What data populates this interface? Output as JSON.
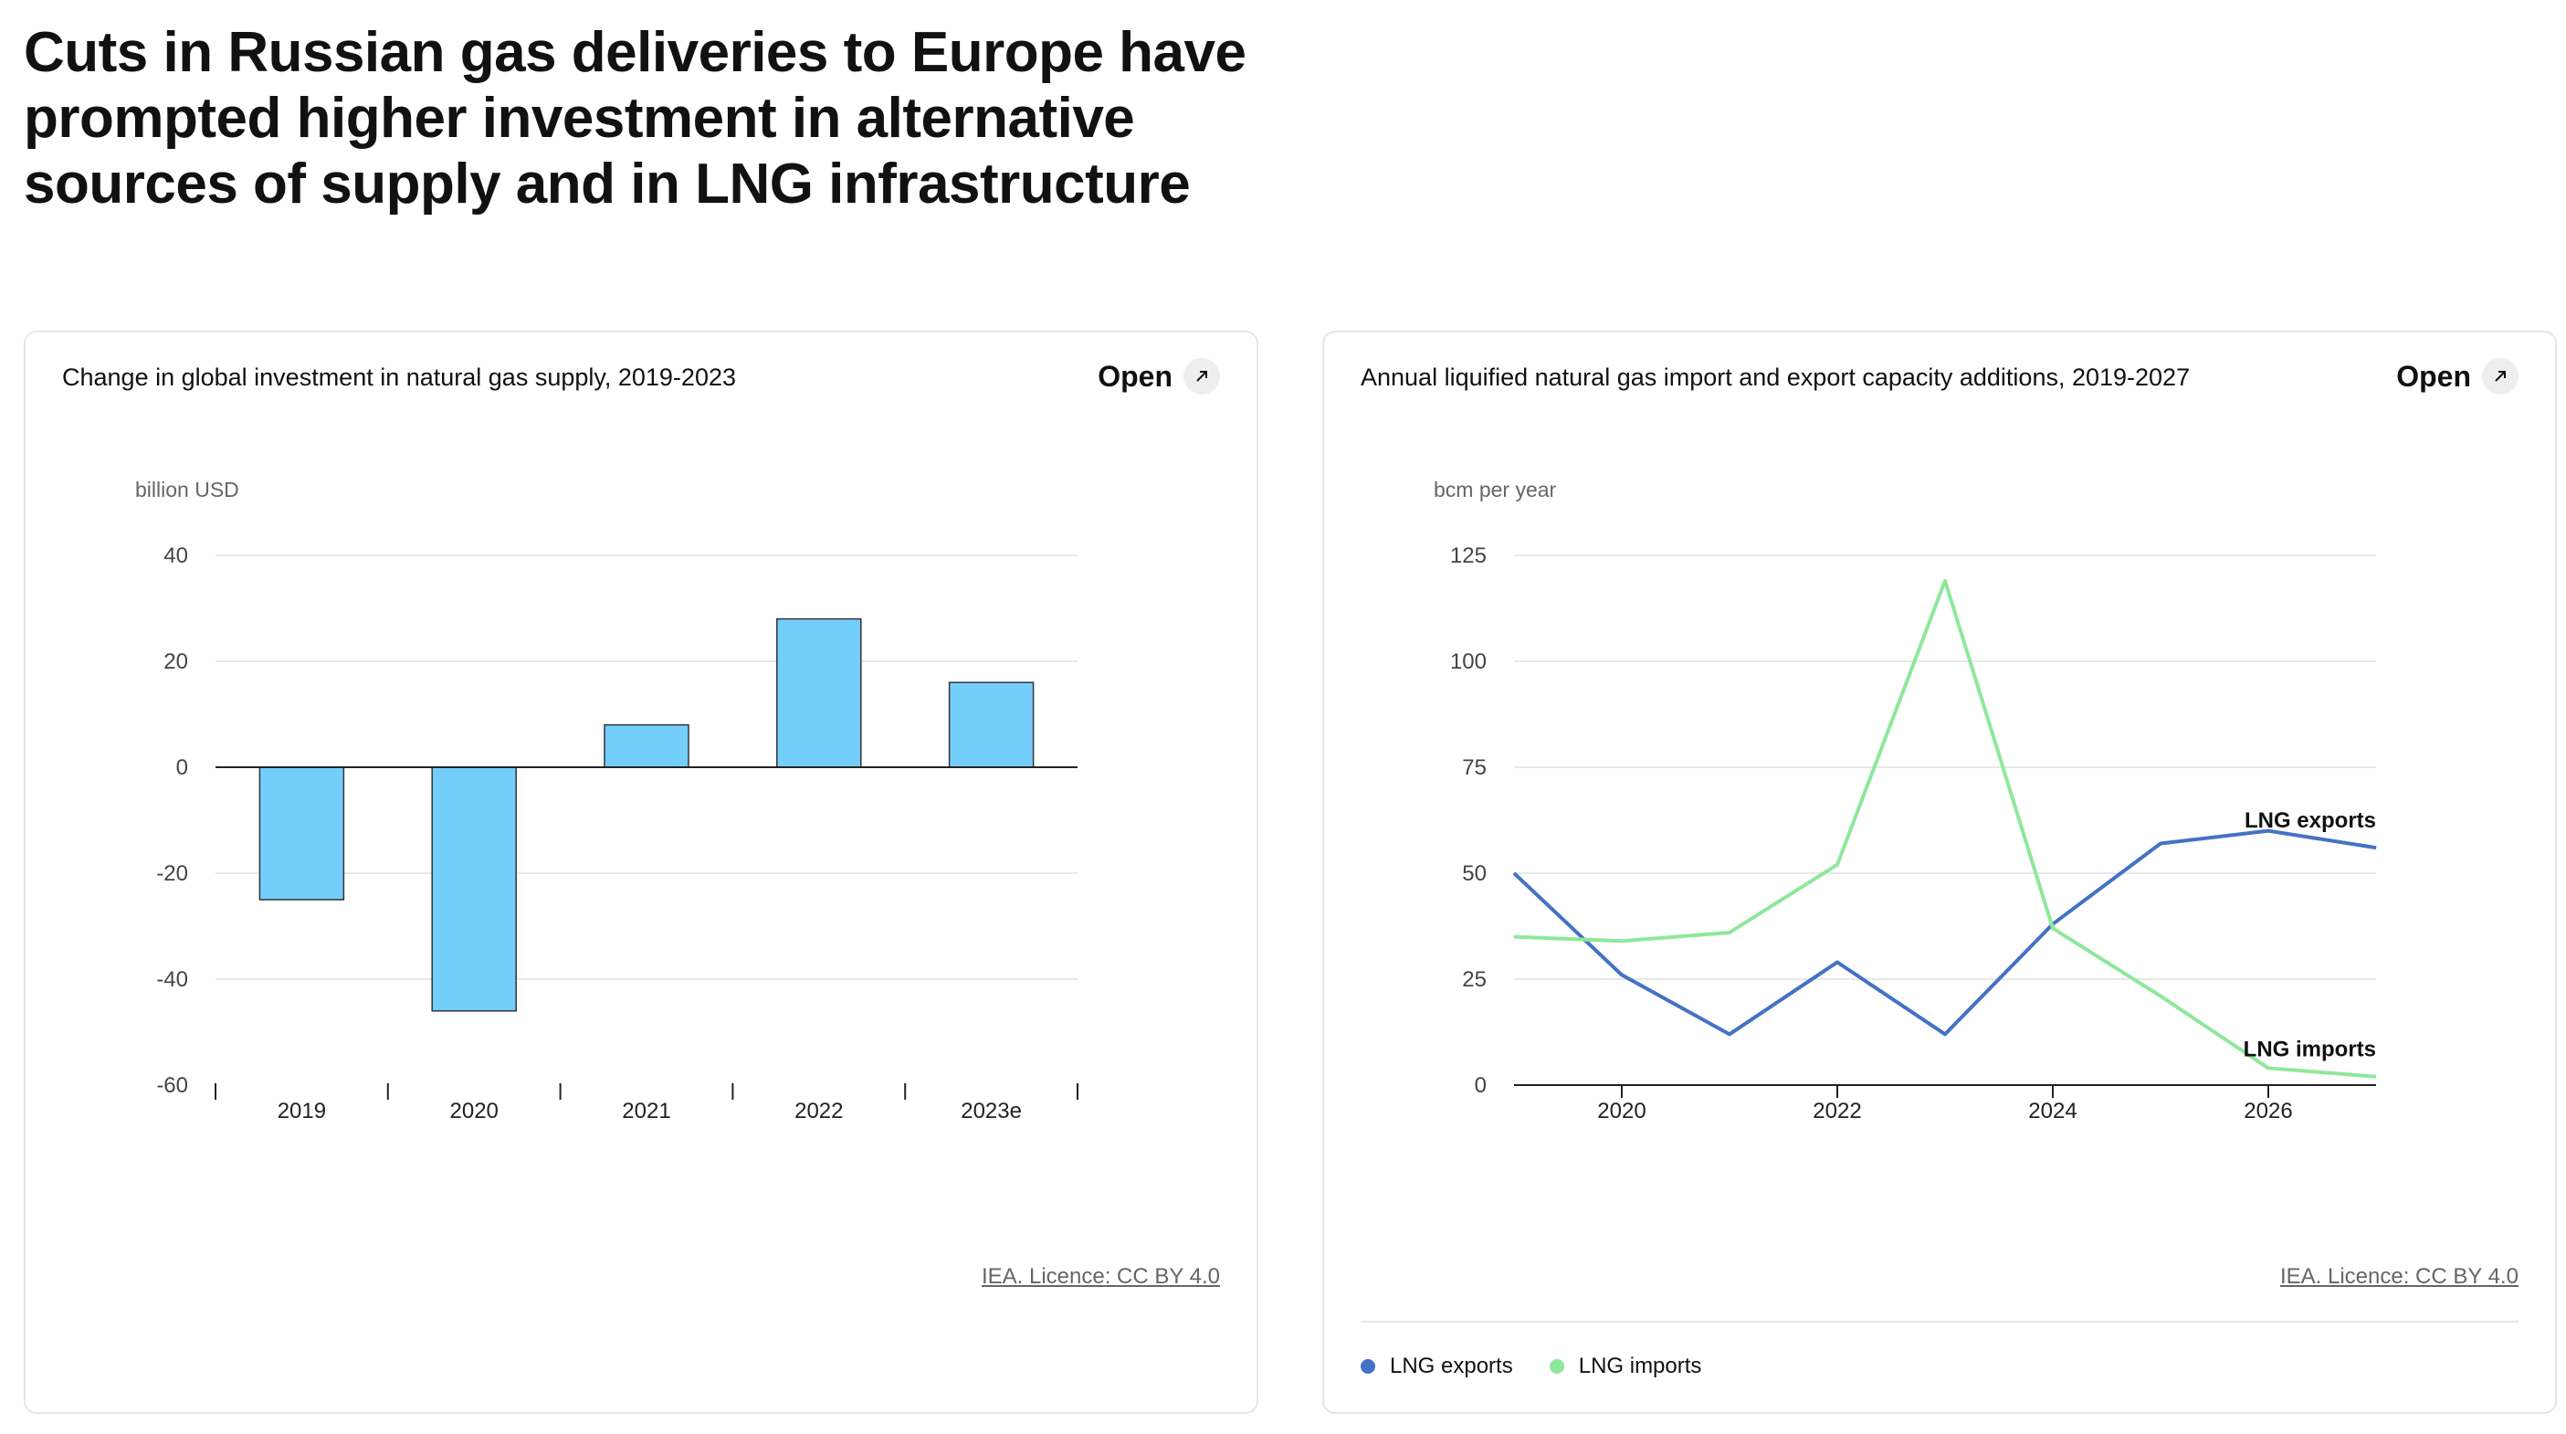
{
  "page": {
    "title": "Cuts in Russian gas deliveries to Europe have prompted higher investment in alternative sources of supply and in LNG infrastructure"
  },
  "left_card": {
    "title": "Change in global investment in natural gas supply, 2019-2023",
    "open_label": "Open",
    "licence": "IEA. Licence: CC BY 4.0"
  },
  "right_card": {
    "title": "Annual liquified natural gas import and export capacity additions, 2019-2027",
    "open_label": "Open",
    "licence": "IEA. Licence: CC BY 4.0",
    "legend": [
      {
        "label": "LNG exports",
        "color": "#4472c4"
      },
      {
        "label": "LNG imports",
        "color": "#8ee89a"
      }
    ]
  },
  "chart_data": [
    {
      "type": "bar",
      "title": "Change in global investment in natural gas supply, 2019-2023",
      "ylabel": "billion USD",
      "categories": [
        "2019",
        "2020",
        "2021",
        "2022",
        "2023e"
      ],
      "values": [
        -25,
        -46,
        8,
        28,
        16
      ],
      "ylim": [
        -60,
        40
      ],
      "yticks": [
        40,
        20,
        0,
        -20,
        -40,
        -60
      ],
      "bar_color": "#74cefc",
      "grid": true
    },
    {
      "type": "line",
      "title": "Annual liquified natural gas import and export capacity additions, 2019-2027",
      "ylabel": "bcm per year",
      "x": [
        2019,
        2020,
        2021,
        2022,
        2023,
        2024,
        2025,
        2026,
        2027
      ],
      "xlim": [
        2019,
        2027
      ],
      "xticks": [
        "2020",
        "2022",
        "2024",
        "2026"
      ],
      "ylim": [
        0,
        125
      ],
      "yticks": [
        125,
        100,
        75,
        50,
        25,
        0
      ],
      "grid": true,
      "series": [
        {
          "name": "LNG exports",
          "values": [
            50,
            26,
            12,
            29,
            12,
            38,
            57,
            60,
            56
          ],
          "color": "#4472c4"
        },
        {
          "name": "LNG imports",
          "values": [
            35,
            34,
            36,
            52,
            119,
            37,
            21,
            4,
            2
          ],
          "color": "#8ee89a"
        }
      ]
    }
  ]
}
